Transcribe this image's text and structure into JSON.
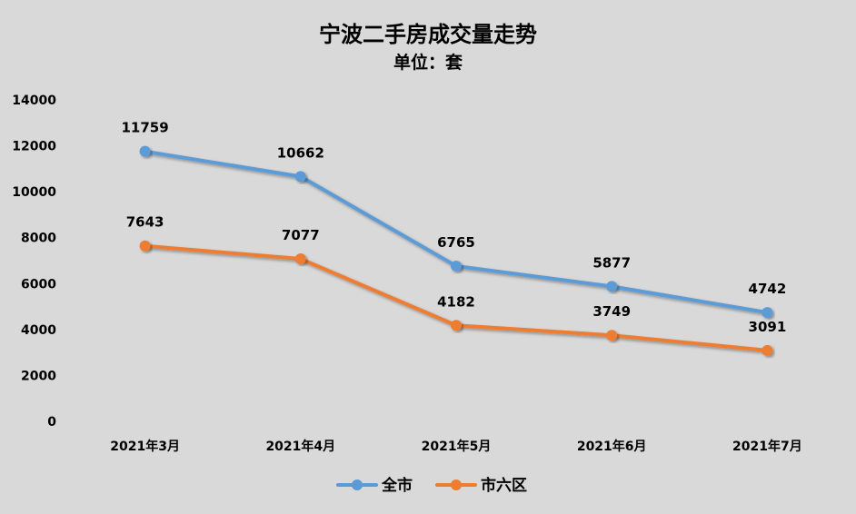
{
  "chart_data": {
    "type": "line",
    "title": "宁波二手房成交量走势",
    "subtitle": "单位：套",
    "categories": [
      "2021年3月",
      "2021年4月",
      "2021年5月",
      "2021年6月",
      "2021年7月"
    ],
    "series": [
      {
        "name": "全市",
        "color": "#5b9bd5",
        "values": [
          11759,
          10662,
          6765,
          5877,
          4742
        ],
        "labels": [
          "11759",
          "10662",
          "6765",
          "5877",
          "4742"
        ]
      },
      {
        "name": "市六区",
        "color": "#ed7d31",
        "values": [
          7643,
          7077,
          4182,
          3749,
          3091
        ],
        "labels": [
          "7643",
          "7077",
          "4182",
          "3749",
          "3091"
        ]
      }
    ],
    "ylim": [
      0,
      14000
    ],
    "yticks": [
      0,
      2000,
      4000,
      6000,
      8000,
      10000,
      12000,
      14000
    ],
    "ytick_labels": [
      "0",
      "2000",
      "4000",
      "6000",
      "8000",
      "10000",
      "12000",
      "14000"
    ],
    "grid": false,
    "legend_position": "bottom"
  }
}
